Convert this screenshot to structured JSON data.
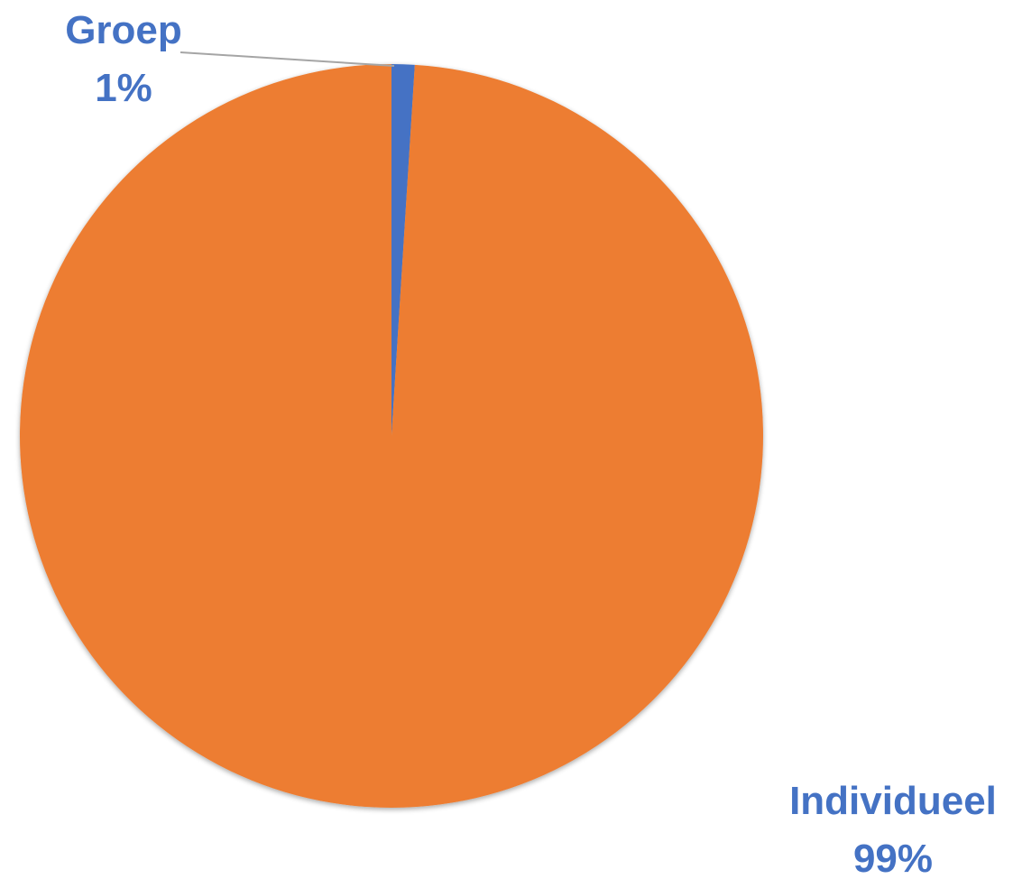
{
  "chart_data": {
    "type": "pie",
    "title": "",
    "slices": [
      {
        "label": "Groep",
        "value": 1,
        "percent_label": "1%",
        "color": "#4472C4"
      },
      {
        "label": "Individueel",
        "value": 99,
        "percent_label": "99%",
        "color": "#ED7D31"
      }
    ],
    "label_color": "#4472C4",
    "leader_line_color": "#A5A5A5",
    "start_angle": "12 o'clock",
    "direction": "clockwise",
    "legend": "none",
    "data_labels": "category name and percentage, outside"
  }
}
